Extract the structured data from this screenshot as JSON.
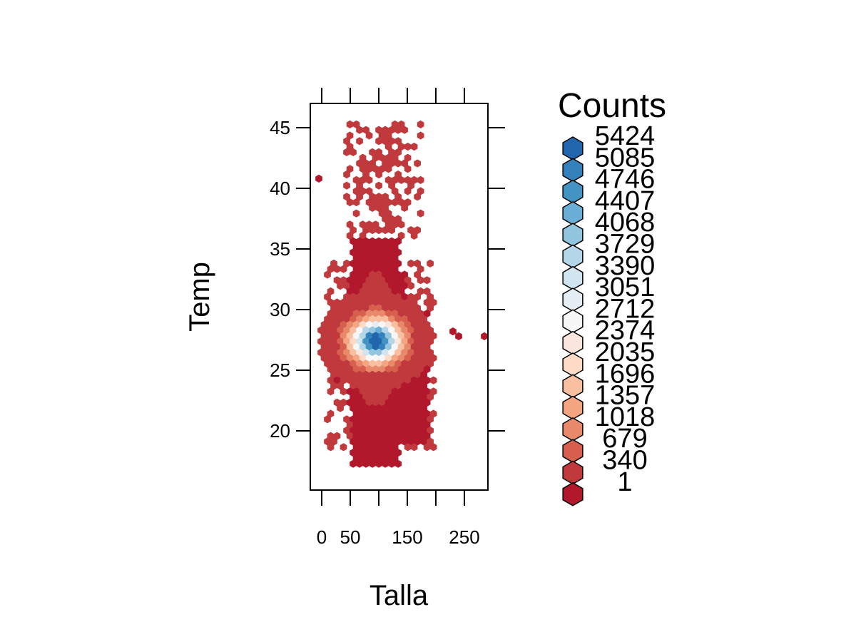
{
  "chart_data": {
    "type": "heatmap",
    "subtype": "hexbin",
    "xlabel": "Talla",
    "ylabel": "Temp",
    "xlim": [
      -20,
      300
    ],
    "ylim": [
      15,
      47.5
    ],
    "x_ticks": [
      0,
      50,
      150,
      250
    ],
    "x_ticks_top": [
      0,
      50,
      100,
      150,
      200,
      250
    ],
    "y_ticks": [
      20,
      25,
      30,
      35,
      40,
      45
    ],
    "legend": {
      "title": "Counts",
      "position": "right",
      "breaks": [
        5424,
        5085,
        4746,
        4407,
        4068,
        3729,
        3390,
        3051,
        2712,
        2374,
        2035,
        1696,
        1357,
        1018,
        679,
        340,
        1
      ],
      "colors": [
        "#2166ac",
        "#3581bc",
        "#4393c3",
        "#6aaed6",
        "#92c5de",
        "#b5d6e8",
        "#d1e5f0",
        "#e4eef4",
        "#f7f7f7",
        "#fbe6dd",
        "#fddbc7",
        "#f8bfa1",
        "#f4a582",
        "#e8896c",
        "#d6604d",
        "#c0393d",
        "#b2182b"
      ]
    },
    "density": {
      "core_center": [
        95,
        27.4
      ],
      "dense_x_range": [
        60,
        160
      ],
      "dense_y_range": [
        17,
        36
      ],
      "sparse_upper_y_range": [
        36,
        45.3
      ],
      "outliers": [
        [
          -5,
          40.8
        ],
        [
          240,
          27.8
        ],
        [
          285,
          27.8
        ],
        [
          230,
          28.2
        ]
      ]
    }
  }
}
